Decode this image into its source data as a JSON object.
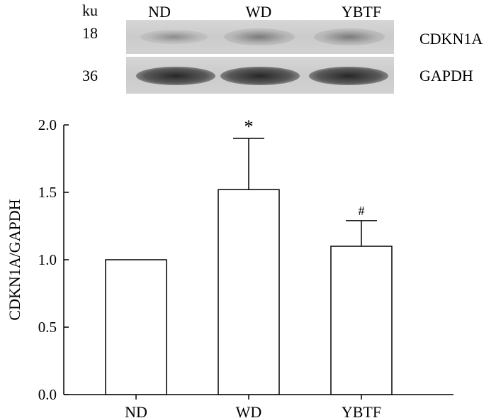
{
  "blot": {
    "unit_label": "ku",
    "lanes": [
      "ND",
      "WD",
      "YBTF"
    ],
    "rows": [
      {
        "marker": "18",
        "protein": "CDKN1A",
        "band_darkness": [
          0.45,
          0.55,
          0.55
        ]
      },
      {
        "marker": "36",
        "protein": "GAPDH",
        "band_darkness": [
          0.95,
          0.95,
          0.95
        ]
      }
    ]
  },
  "chart_data": {
    "type": "bar",
    "categories": [
      "ND",
      "WD",
      "YBTF"
    ],
    "values": [
      1.0,
      1.52,
      1.1
    ],
    "errors": [
      0,
      0.38,
      0.19
    ],
    "annotations": [
      "",
      "*",
      "#"
    ],
    "ylabel": "CDKN1A/GAPDH",
    "xlabel": "",
    "ylim": [
      0,
      2.0
    ],
    "yticks": [
      "0.0",
      "0.5",
      "1.0",
      "1.5",
      "2.0"
    ],
    "grid": false,
    "bar_color": "#ffffff",
    "edge_color": "#000000"
  }
}
